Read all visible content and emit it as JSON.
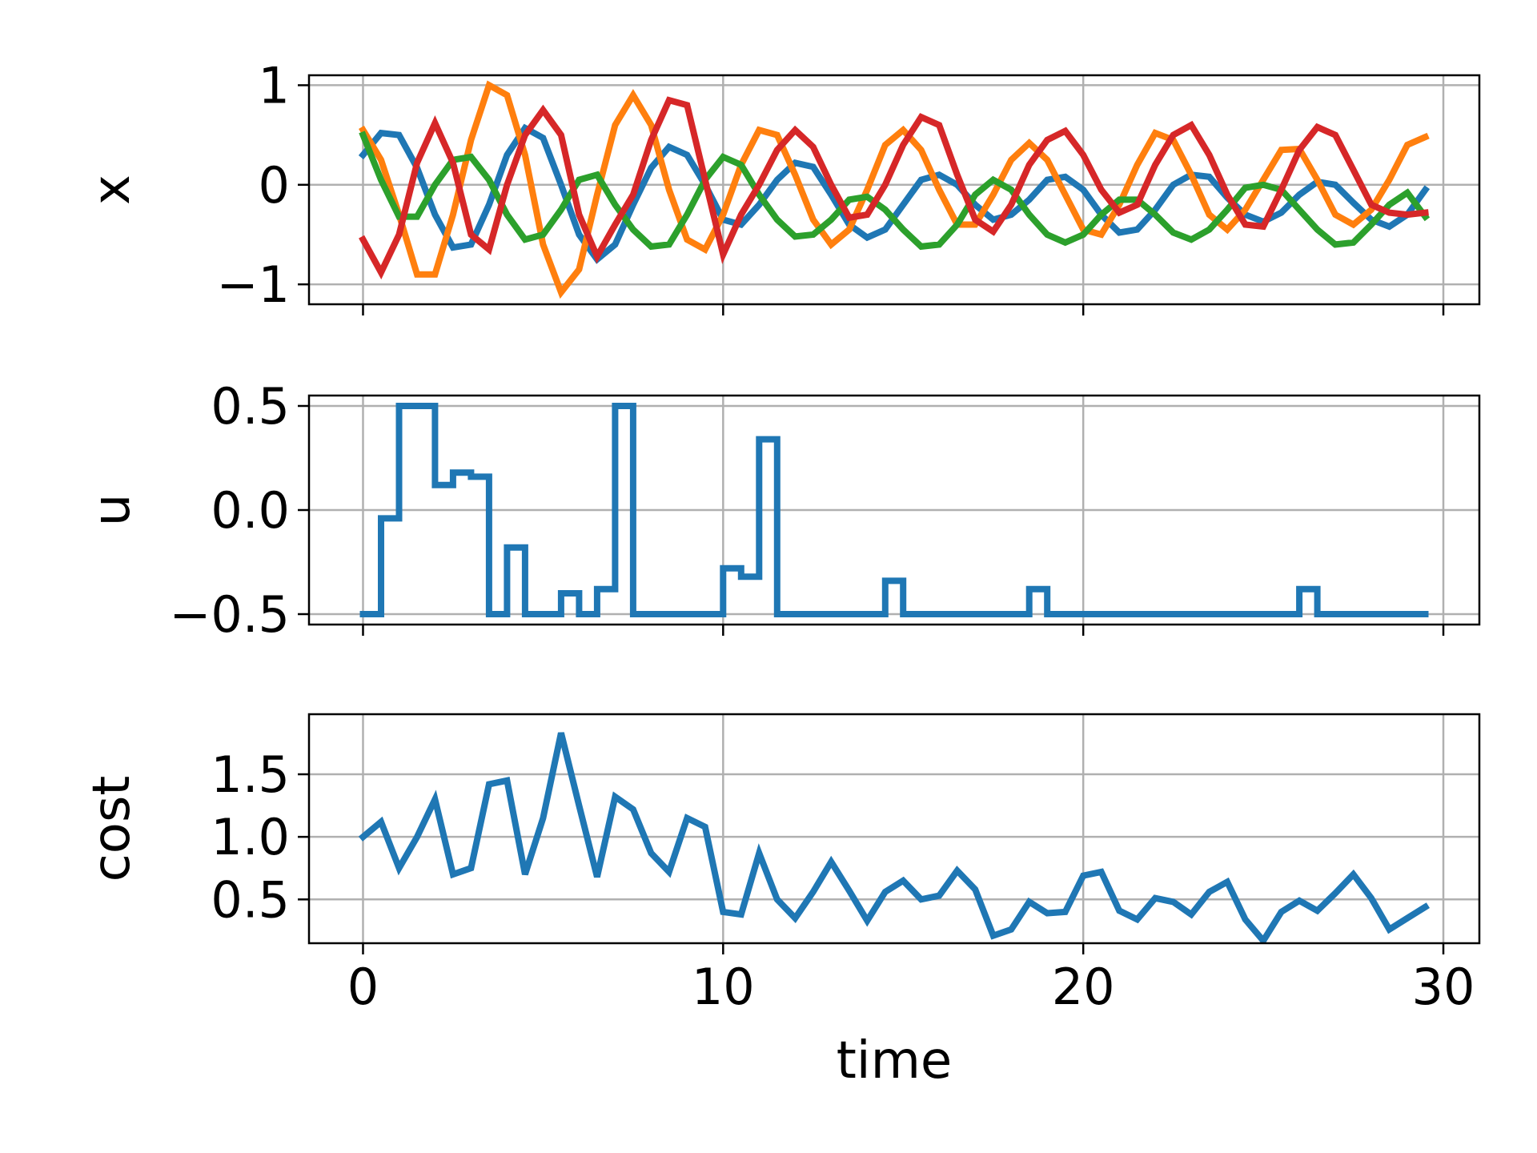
{
  "chart_data": [
    {
      "type": "line",
      "ylabel": "x",
      "xlim": [
        -1.5,
        31
      ],
      "ylim": [
        -1.2,
        1.1
      ],
      "x_ticks": [
        0,
        10,
        20,
        30
      ],
      "y_ticks": [
        1,
        0,
        -1
      ],
      "y_tick_labels": [
        "1",
        "0",
        "−1"
      ],
      "show_x_tick_labels": false,
      "grid": true,
      "series": [
        {
          "color": "#1f77b4",
          "x_step": 0.5,
          "values": [
            0.3,
            0.52,
            0.5,
            0.17,
            -0.3,
            -0.63,
            -0.6,
            -0.2,
            0.3,
            0.57,
            0.47,
            0.0,
            -0.5,
            -0.75,
            -0.6,
            -0.2,
            0.17,
            0.38,
            0.3,
            0.0,
            -0.35,
            -0.4,
            -0.2,
            0.05,
            0.22,
            0.18,
            -0.1,
            -0.4,
            -0.53,
            -0.45,
            -0.2,
            0.05,
            0.1,
            0.0,
            -0.2,
            -0.35,
            -0.3,
            -0.15,
            0.05,
            0.08,
            -0.05,
            -0.3,
            -0.48,
            -0.45,
            -0.25,
            0.0,
            0.1,
            0.08,
            -0.13,
            -0.3,
            -0.37,
            -0.28,
            -0.1,
            0.03,
            0.0,
            -0.18,
            -0.35,
            -0.42,
            -0.3,
            -0.05
          ]
        },
        {
          "color": "#ff7f0e",
          "x_step": 0.5,
          "values": [
            0.55,
            0.25,
            -0.3,
            -0.9,
            -0.9,
            -0.3,
            0.45,
            1.0,
            0.9,
            0.3,
            -0.6,
            -1.08,
            -0.85,
            -0.1,
            0.6,
            0.9,
            0.6,
            -0.05,
            -0.55,
            -0.65,
            -0.3,
            0.2,
            0.55,
            0.5,
            0.1,
            -0.35,
            -0.6,
            -0.45,
            -0.05,
            0.4,
            0.55,
            0.35,
            -0.05,
            -0.4,
            -0.4,
            -0.1,
            0.25,
            0.42,
            0.25,
            -0.1,
            -0.45,
            -0.5,
            -0.2,
            0.2,
            0.52,
            0.45,
            0.1,
            -0.3,
            -0.45,
            -0.25,
            0.05,
            0.35,
            0.36,
            0.05,
            -0.3,
            -0.4,
            -0.25,
            0.05,
            0.4,
            0.48
          ]
        },
        {
          "color": "#2ca02c",
          "x_step": 0.5,
          "values": [
            0.5,
            0.05,
            -0.32,
            -0.32,
            0.0,
            0.25,
            0.28,
            0.05,
            -0.3,
            -0.55,
            -0.5,
            -0.25,
            0.05,
            0.1,
            -0.2,
            -0.45,
            -0.62,
            -0.6,
            -0.3,
            0.05,
            0.28,
            0.2,
            -0.1,
            -0.35,
            -0.52,
            -0.5,
            -0.35,
            -0.15,
            -0.12,
            -0.25,
            -0.45,
            -0.62,
            -0.6,
            -0.4,
            -0.1,
            0.05,
            -0.05,
            -0.3,
            -0.5,
            -0.58,
            -0.5,
            -0.3,
            -0.15,
            -0.15,
            -0.3,
            -0.48,
            -0.55,
            -0.45,
            -0.25,
            -0.03,
            0.0,
            -0.05,
            -0.25,
            -0.45,
            -0.6,
            -0.58,
            -0.4,
            -0.2,
            -0.08,
            -0.32
          ]
        },
        {
          "color": "#d62728",
          "x_step": 0.5,
          "values": [
            -0.55,
            -0.88,
            -0.5,
            0.22,
            0.62,
            0.22,
            -0.5,
            -0.65,
            0.0,
            0.5,
            0.75,
            0.5,
            -0.3,
            -0.72,
            -0.4,
            -0.1,
            0.45,
            0.85,
            0.8,
            0.05,
            -0.7,
            -0.3,
            0.0,
            0.35,
            0.55,
            0.38,
            0.0,
            -0.33,
            -0.3,
            0.0,
            0.4,
            0.68,
            0.6,
            0.1,
            -0.35,
            -0.47,
            -0.2,
            0.2,
            0.45,
            0.54,
            0.3,
            -0.05,
            -0.28,
            -0.2,
            0.2,
            0.5,
            0.6,
            0.3,
            -0.1,
            -0.4,
            -0.42,
            -0.05,
            0.35,
            0.58,
            0.5,
            0.15,
            -0.2,
            -0.28,
            -0.3,
            -0.28
          ]
        }
      ]
    },
    {
      "type": "step",
      "ylabel": "u",
      "xlim": [
        -1.5,
        31
      ],
      "ylim": [
        -0.55,
        0.55
      ],
      "x_ticks": [
        0,
        10,
        20,
        30
      ],
      "y_ticks": [
        0.5,
        0.0,
        -0.5
      ],
      "y_tick_labels": [
        "0.5",
        "0.0",
        "−0.5"
      ],
      "show_x_tick_labels": false,
      "grid": true,
      "series": [
        {
          "color": "#1f77b4",
          "x_step": 0.5,
          "values": [
            -0.5,
            -0.04,
            0.5,
            0.5,
            0.12,
            0.18,
            0.16,
            -0.5,
            -0.18,
            -0.5,
            -0.5,
            -0.4,
            -0.5,
            -0.38,
            0.5,
            -0.5,
            -0.5,
            -0.5,
            -0.5,
            -0.5,
            -0.28,
            -0.32,
            0.34,
            -0.5,
            -0.5,
            -0.5,
            -0.5,
            -0.5,
            -0.5,
            -0.34,
            -0.5,
            -0.5,
            -0.5,
            -0.5,
            -0.5,
            -0.5,
            -0.5,
            -0.38,
            -0.5,
            -0.5,
            -0.5,
            -0.5,
            -0.5,
            -0.5,
            -0.5,
            -0.5,
            -0.5,
            -0.5,
            -0.5,
            -0.5,
            -0.5,
            -0.5,
            -0.38,
            -0.5,
            -0.5,
            -0.5,
            -0.5,
            -0.5,
            -0.5,
            -0.5
          ]
        }
      ]
    },
    {
      "type": "line",
      "ylabel": "cost",
      "xlabel": "time",
      "xlim": [
        -1.5,
        31
      ],
      "ylim": [
        0.15,
        1.98
      ],
      "x_ticks": [
        0,
        10,
        20,
        30
      ],
      "x_tick_labels": [
        "0",
        "10",
        "20",
        "30"
      ],
      "y_ticks": [
        1.5,
        1.0,
        0.5
      ],
      "y_tick_labels": [
        "1.5",
        "1.0",
        "0.5"
      ],
      "show_x_tick_labels": true,
      "grid": true,
      "series": [
        {
          "color": "#1f77b4",
          "x_step": 0.5,
          "values": [
            1.0,
            1.12,
            0.75,
            1.0,
            1.3,
            0.7,
            0.75,
            1.42,
            1.45,
            0.7,
            1.15,
            1.83,
            1.25,
            0.68,
            1.32,
            1.22,
            0.87,
            0.72,
            1.15,
            1.08,
            0.4,
            0.38,
            0.87,
            0.5,
            0.35,
            0.56,
            0.8,
            0.57,
            0.33,
            0.56,
            0.65,
            0.5,
            0.53,
            0.73,
            0.58,
            0.21,
            0.26,
            0.48,
            0.39,
            0.4,
            0.69,
            0.72,
            0.41,
            0.34,
            0.51,
            0.48,
            0.38,
            0.56,
            0.64,
            0.34,
            0.17,
            0.4,
            0.49,
            0.41,
            0.55,
            0.7,
            0.51,
            0.26,
            0.35,
            0.44
          ]
        }
      ]
    }
  ]
}
